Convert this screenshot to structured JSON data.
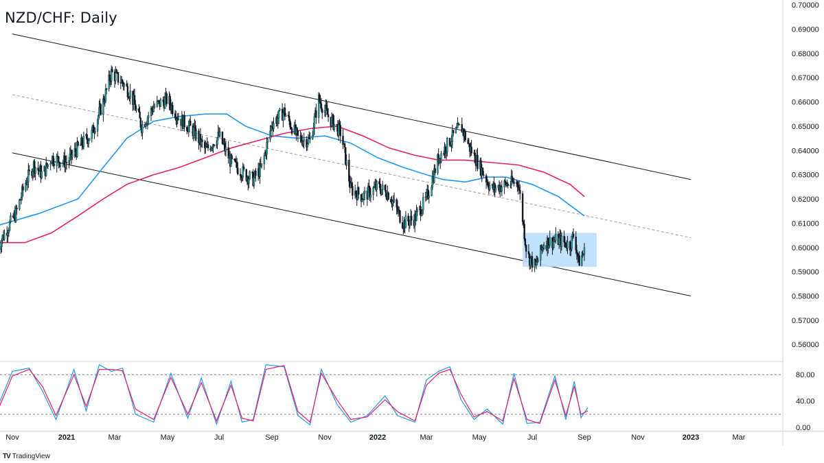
{
  "title": "NZD/CHF: Daily",
  "branding": {
    "logo": "TV",
    "text": "TradingView"
  },
  "colors": {
    "bull": "#26a69a",
    "bear": "#131722",
    "sma_fast": "#2196f3",
    "sma_slow": "#e91e63",
    "stoch_k": "#2196f3",
    "stoch_d": "#e91e63",
    "range_box": "#bbdefb",
    "channel": "#131722",
    "midline": "#9e9e9e"
  },
  "chart_data": [
    {
      "type": "line",
      "title": "NZD/CHF: Daily",
      "y_axis": {
        "side": "right",
        "ticks": [
          "0.70000",
          "0.69000",
          "0.68000",
          "0.67000",
          "0.66000",
          "0.65000",
          "0.64000",
          "0.63000",
          "0.62000",
          "0.61000",
          "0.60000",
          "0.59000",
          "0.58000",
          "0.57000",
          "0.56000"
        ],
        "range": [
          0.553,
          0.702
        ]
      },
      "x_axis": {
        "ticks": [
          "Nov",
          "2021",
          "Mar",
          "May",
          "Jul",
          "Sep",
          "Nov",
          "2022",
          "Mar",
          "May",
          "Jul",
          "Sep",
          "Nov",
          "2023",
          "Mar"
        ],
        "bold_ticks": [
          "2021",
          "2022",
          "2023"
        ]
      },
      "price_series": {
        "name": "",
        "points": [
          [
            "2020-10-15",
            0.6
          ],
          [
            "2020-10-25",
            0.607
          ],
          [
            "2020-11-05",
            0.614
          ],
          [
            "2020-11-15",
            0.626
          ],
          [
            "2020-11-25",
            0.634
          ],
          [
            "2020-12-05",
            0.63
          ],
          [
            "2020-12-15",
            0.637
          ],
          [
            "2021-01-01",
            0.635
          ],
          [
            "2021-01-15",
            0.641
          ],
          [
            "2021-02-01",
            0.647
          ],
          [
            "2021-02-15",
            0.66
          ],
          [
            "2021-02-25",
            0.672
          ],
          [
            "2021-03-10",
            0.668
          ],
          [
            "2021-03-20",
            0.663
          ],
          [
            "2021-04-01",
            0.65
          ],
          [
            "2021-04-15",
            0.658
          ],
          [
            "2021-05-01",
            0.661
          ],
          [
            "2021-05-15",
            0.653
          ],
          [
            "2021-06-01",
            0.648
          ],
          [
            "2021-06-15",
            0.64
          ],
          [
            "2021-07-01",
            0.646
          ],
          [
            "2021-07-15",
            0.635
          ],
          [
            "2021-08-01",
            0.63
          ],
          [
            "2021-08-10",
            0.628
          ],
          [
            "2021-08-20",
            0.633
          ],
          [
            "2021-09-01",
            0.651
          ],
          [
            "2021-09-15",
            0.656
          ],
          [
            "2021-10-01",
            0.645
          ],
          [
            "2021-10-15",
            0.644
          ],
          [
            "2021-10-25",
            0.661
          ],
          [
            "2021-11-05",
            0.654
          ],
          [
            "2021-11-20",
            0.647
          ],
          [
            "2021-12-01",
            0.624
          ],
          [
            "2021-12-15",
            0.621
          ],
          [
            "2022-01-01",
            0.625
          ],
          [
            "2022-01-15",
            0.622
          ],
          [
            "2022-02-01",
            0.61
          ],
          [
            "2022-02-15",
            0.612
          ],
          [
            "2022-03-01",
            0.62
          ],
          [
            "2022-03-15",
            0.637
          ],
          [
            "2022-04-01",
            0.646
          ],
          [
            "2022-04-10",
            0.65
          ],
          [
            "2022-04-20",
            0.641
          ],
          [
            "2022-05-01",
            0.634
          ],
          [
            "2022-05-15",
            0.624
          ],
          [
            "2022-06-01",
            0.626
          ],
          [
            "2022-06-15",
            0.627
          ],
          [
            "2022-06-25",
            0.597
          ],
          [
            "2022-07-05",
            0.592
          ],
          [
            "2022-07-15",
            0.602
          ],
          [
            "2022-08-01",
            0.603
          ],
          [
            "2022-08-15",
            0.601
          ],
          [
            "2022-08-20",
            0.606
          ],
          [
            "2022-08-25",
            0.594
          ],
          [
            "2022-09-01",
            0.598
          ]
        ]
      },
      "moving_averages": [
        {
          "name": "",
          "color_key": "sma_fast",
          "points": [
            [
              "2020-10-15",
              0.609
            ],
            [
              "2020-12-01",
              0.614
            ],
            [
              "2021-01-15",
              0.62
            ],
            [
              "2021-02-15",
              0.633
            ],
            [
              "2021-03-15",
              0.645
            ],
            [
              "2021-04-15",
              0.652
            ],
            [
              "2021-05-15",
              0.654
            ],
            [
              "2021-06-15",
              0.655
            ],
            [
              "2021-07-10",
              0.655
            ],
            [
              "2021-08-01",
              0.65
            ],
            [
              "2021-09-01",
              0.646
            ],
            [
              "2021-10-01",
              0.645
            ],
            [
              "2021-11-01",
              0.646
            ],
            [
              "2021-12-01",
              0.643
            ],
            [
              "2022-01-01",
              0.637
            ],
            [
              "2022-02-01",
              0.633
            ],
            [
              "2022-03-01",
              0.63
            ],
            [
              "2022-03-20",
              0.628
            ],
            [
              "2022-04-15",
              0.627
            ],
            [
              "2022-05-10",
              0.629
            ],
            [
              "2022-06-01",
              0.629
            ],
            [
              "2022-07-01",
              0.626
            ],
            [
              "2022-08-01",
              0.621
            ],
            [
              "2022-09-01",
              0.613
            ]
          ]
        },
        {
          "name": "",
          "color_key": "sma_slow",
          "points": [
            [
              "2020-10-15",
              0.602
            ],
            [
              "2020-11-15",
              0.602
            ],
            [
              "2020-12-15",
              0.606
            ],
            [
              "2021-01-15",
              0.613
            ],
            [
              "2021-02-15",
              0.62
            ],
            [
              "2021-03-15",
              0.626
            ],
            [
              "2021-04-15",
              0.63
            ],
            [
              "2021-05-15",
              0.633
            ],
            [
              "2021-06-15",
              0.637
            ],
            [
              "2021-07-15",
              0.641
            ],
            [
              "2021-08-15",
              0.644
            ],
            [
              "2021-09-15",
              0.647
            ],
            [
              "2021-10-15",
              0.649
            ],
            [
              "2021-11-15",
              0.65
            ],
            [
              "2021-12-15",
              0.646
            ],
            [
              "2022-01-15",
              0.641
            ],
            [
              "2022-02-15",
              0.638
            ],
            [
              "2022-03-15",
              0.636
            ],
            [
              "2022-04-15",
              0.636
            ],
            [
              "2022-05-15",
              0.635
            ],
            [
              "2022-06-15",
              0.634
            ],
            [
              "2022-07-15",
              0.631
            ],
            [
              "2022-08-15",
              0.626
            ],
            [
              "2022-09-01",
              0.621
            ]
          ]
        }
      ],
      "channel": {
        "upper": [
          [
            "2020-11-01",
            0.688
          ],
          [
            "2023-01-01",
            0.628
          ]
        ],
        "middle": [
          [
            "2020-11-01",
            0.663
          ],
          [
            "2023-01-01",
            0.604
          ]
        ],
        "lower": [
          [
            "2020-11-01",
            0.639
          ],
          [
            "2023-01-01",
            0.58
          ]
        ]
      },
      "range_box": {
        "x": [
          "2022-06-20",
          "2022-09-15"
        ],
        "y": [
          0.592,
          0.606
        ]
      }
    },
    {
      "type": "line",
      "title": "",
      "y_axis": {
        "side": "right",
        "ticks": [
          "80.00",
          "40.00",
          "0.00"
        ],
        "range": [
          -5,
          100
        ],
        "reference_lines": [
          80,
          20
        ]
      },
      "series": [
        {
          "name": "",
          "color_key": "stoch_k",
          "points": [
            [
              "2020-10-15",
              30
            ],
            [
              "2020-11-01",
              85
            ],
            [
              "2020-11-20",
              90
            ],
            [
              "2020-12-05",
              55
            ],
            [
              "2020-12-20",
              12
            ],
            [
              "2021-01-10",
              88
            ],
            [
              "2021-01-25",
              25
            ],
            [
              "2021-02-10",
              95
            ],
            [
              "2021-02-25",
              85
            ],
            [
              "2021-03-10",
              90
            ],
            [
              "2021-03-25",
              20
            ],
            [
              "2021-04-15",
              8
            ],
            [
              "2021-05-05",
              82
            ],
            [
              "2021-05-25",
              14
            ],
            [
              "2021-06-10",
              75
            ],
            [
              "2021-06-28",
              5
            ],
            [
              "2021-07-15",
              70
            ],
            [
              "2021-07-28",
              8
            ],
            [
              "2021-08-10",
              12
            ],
            [
              "2021-08-25",
              95
            ],
            [
              "2021-09-15",
              92
            ],
            [
              "2021-10-01",
              18
            ],
            [
              "2021-10-15",
              4
            ],
            [
              "2021-10-28",
              88
            ],
            [
              "2021-11-15",
              35
            ],
            [
              "2021-12-01",
              8
            ],
            [
              "2021-12-20",
              18
            ],
            [
              "2022-01-10",
              48
            ],
            [
              "2022-01-25",
              18
            ],
            [
              "2022-02-15",
              8
            ],
            [
              "2022-03-01",
              72
            ],
            [
              "2022-03-15",
              85
            ],
            [
              "2022-03-28",
              92
            ],
            [
              "2022-04-10",
              42
            ],
            [
              "2022-04-25",
              12
            ],
            [
              "2022-05-10",
              28
            ],
            [
              "2022-05-28",
              5
            ],
            [
              "2022-06-10",
              82
            ],
            [
              "2022-06-25",
              6
            ],
            [
              "2022-07-10",
              8
            ],
            [
              "2022-07-28",
              78
            ],
            [
              "2022-08-10",
              12
            ],
            [
              "2022-08-20",
              70
            ],
            [
              "2022-08-28",
              15
            ],
            [
              "2022-09-05",
              30
            ]
          ]
        },
        {
          "name": "",
          "color_key": "stoch_d",
          "points": [
            [
              "2020-10-15",
              24
            ],
            [
              "2020-11-01",
              78
            ],
            [
              "2020-11-20",
              88
            ],
            [
              "2020-12-05",
              62
            ],
            [
              "2020-12-20",
              18
            ],
            [
              "2021-01-10",
              80
            ],
            [
              "2021-01-25",
              32
            ],
            [
              "2021-02-10",
              88
            ],
            [
              "2021-02-25",
              88
            ],
            [
              "2021-03-10",
              86
            ],
            [
              "2021-03-25",
              28
            ],
            [
              "2021-04-15",
              12
            ],
            [
              "2021-05-05",
              76
            ],
            [
              "2021-05-25",
              20
            ],
            [
              "2021-06-10",
              68
            ],
            [
              "2021-06-28",
              10
            ],
            [
              "2021-07-15",
              64
            ],
            [
              "2021-07-28",
              14
            ],
            [
              "2021-08-10",
              10
            ],
            [
              "2021-08-25",
              88
            ],
            [
              "2021-09-15",
              94
            ],
            [
              "2021-10-01",
              24
            ],
            [
              "2021-10-15",
              8
            ],
            [
              "2021-10-28",
              82
            ],
            [
              "2021-11-15",
              42
            ],
            [
              "2021-12-01",
              12
            ],
            [
              "2021-12-20",
              16
            ],
            [
              "2022-01-10",
              42
            ],
            [
              "2022-01-25",
              24
            ],
            [
              "2022-02-15",
              10
            ],
            [
              "2022-03-01",
              64
            ],
            [
              "2022-03-15",
              82
            ],
            [
              "2022-03-28",
              88
            ],
            [
              "2022-04-10",
              50
            ],
            [
              "2022-04-25",
              16
            ],
            [
              "2022-05-10",
              24
            ],
            [
              "2022-05-28",
              10
            ],
            [
              "2022-06-10",
              74
            ],
            [
              "2022-06-25",
              12
            ],
            [
              "2022-07-10",
              6
            ],
            [
              "2022-07-28",
              72
            ],
            [
              "2022-08-10",
              18
            ],
            [
              "2022-08-20",
              62
            ],
            [
              "2022-08-28",
              20
            ],
            [
              "2022-09-05",
              25
            ]
          ]
        }
      ]
    }
  ]
}
